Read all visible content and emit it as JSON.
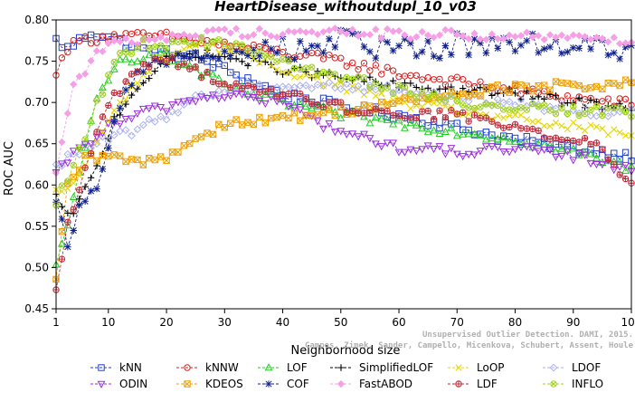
{
  "chart_data": {
    "type": "line",
    "title": "HeartDisease_withoutdupl_10_v03",
    "xlabel": "Neighborhood size",
    "ylabel": "ROC AUC",
    "xlim": [
      1,
      100
    ],
    "ylim": [
      0.45,
      0.8
    ],
    "x_ticks": [
      "1",
      "10",
      "20",
      "30",
      "40",
      "50",
      "60",
      "70",
      "80",
      "90",
      "100"
    ],
    "y_ticks": [
      "0.45",
      "0.50",
      "0.55",
      "0.60",
      "0.65",
      "0.70",
      "0.75",
      "0.80"
    ],
    "grid": false,
    "legend_position": "bottom",
    "credit": [
      "Campos, Zimek, Sander, Campello, Micenkova, Schubert, Assent, Houle",
      "Unsupervised Outlier Detection. DAMI, 2015."
    ],
    "series": [
      {
        "name": "kNN",
        "color": "#1f3fcf",
        "marker": "square",
        "anchors": [
          [
            1,
            0.775
          ],
          [
            3,
            0.765
          ],
          [
            7,
            0.785
          ],
          [
            10,
            0.78
          ],
          [
            15,
            0.765
          ],
          [
            20,
            0.76
          ],
          [
            25,
            0.755
          ],
          [
            30,
            0.74
          ],
          [
            35,
            0.725
          ],
          [
            40,
            0.71
          ],
          [
            50,
            0.695
          ],
          [
            60,
            0.685
          ],
          [
            70,
            0.67
          ],
          [
            80,
            0.655
          ],
          [
            90,
            0.645
          ],
          [
            100,
            0.635
          ]
        ]
      },
      {
        "name": "kNNW",
        "color": "#d62020",
        "marker": "circle",
        "anchors": [
          [
            1,
            0.73
          ],
          [
            2,
            0.76
          ],
          [
            5,
            0.775
          ],
          [
            10,
            0.78
          ],
          [
            20,
            0.78
          ],
          [
            30,
            0.77
          ],
          [
            40,
            0.76
          ],
          [
            50,
            0.75
          ],
          [
            60,
            0.735
          ],
          [
            70,
            0.725
          ],
          [
            80,
            0.715
          ],
          [
            90,
            0.705
          ],
          [
            100,
            0.698
          ]
        ]
      },
      {
        "name": "LOF",
        "color": "#22cc22",
        "marker": "triangle-up",
        "anchors": [
          [
            1,
            0.5
          ],
          [
            3,
            0.55
          ],
          [
            5,
            0.62
          ],
          [
            8,
            0.7
          ],
          [
            12,
            0.75
          ],
          [
            18,
            0.76
          ],
          [
            25,
            0.74
          ],
          [
            30,
            0.72
          ],
          [
            40,
            0.7
          ],
          [
            50,
            0.685
          ],
          [
            60,
            0.675
          ],
          [
            70,
            0.665
          ],
          [
            80,
            0.655
          ],
          [
            90,
            0.64
          ],
          [
            100,
            0.62
          ]
        ]
      },
      {
        "name": "SimplifiedLOF",
        "color": "#000000",
        "marker": "plus",
        "anchors": [
          [
            1,
            0.585
          ],
          [
            3,
            0.56
          ],
          [
            5,
            0.58
          ],
          [
            8,
            0.62
          ],
          [
            11,
            0.68
          ],
          [
            15,
            0.72
          ],
          [
            20,
            0.75
          ],
          [
            25,
            0.76
          ],
          [
            30,
            0.755
          ],
          [
            40,
            0.74
          ],
          [
            50,
            0.73
          ],
          [
            60,
            0.72
          ],
          [
            70,
            0.715
          ],
          [
            80,
            0.71
          ],
          [
            90,
            0.7
          ],
          [
            100,
            0.695
          ]
        ]
      },
      {
        "name": "LoOP",
        "color": "#e6d800",
        "marker": "x",
        "anchors": [
          [
            1,
            0.59
          ],
          [
            4,
            0.6
          ],
          [
            8,
            0.65
          ],
          [
            12,
            0.7
          ],
          [
            18,
            0.75
          ],
          [
            25,
            0.77
          ],
          [
            30,
            0.765
          ],
          [
            40,
            0.74
          ],
          [
            50,
            0.72
          ],
          [
            60,
            0.7
          ],
          [
            70,
            0.69
          ],
          [
            80,
            0.68
          ],
          [
            90,
            0.67
          ],
          [
            100,
            0.66
          ]
        ]
      },
      {
        "name": "LDOF",
        "color": "#aab0ee",
        "marker": "diamond",
        "anchors": [
          [
            1,
            0.62
          ],
          [
            4,
            0.64
          ],
          [
            8,
            0.65
          ],
          [
            12,
            0.66
          ],
          [
            16,
            0.67
          ],
          [
            20,
            0.685
          ],
          [
            25,
            0.705
          ],
          [
            30,
            0.715
          ],
          [
            40,
            0.72
          ],
          [
            50,
            0.72
          ],
          [
            60,
            0.715
          ],
          [
            70,
            0.705
          ],
          [
            80,
            0.7
          ],
          [
            90,
            0.69
          ],
          [
            100,
            0.688
          ]
        ]
      },
      {
        "name": "ODIN",
        "color": "#9a2be2",
        "marker": "triangle-down",
        "anchors": [
          [
            1,
            0.61
          ],
          [
            3,
            0.63
          ],
          [
            6,
            0.65
          ],
          [
            10,
            0.67
          ],
          [
            15,
            0.685
          ],
          [
            20,
            0.695
          ],
          [
            25,
            0.705
          ],
          [
            30,
            0.71
          ],
          [
            40,
            0.7
          ],
          [
            45,
            0.68
          ],
          [
            50,
            0.665
          ],
          [
            60,
            0.645
          ],
          [
            70,
            0.64
          ],
          [
            80,
            0.643
          ],
          [
            90,
            0.635
          ],
          [
            100,
            0.62
          ]
        ]
      },
      {
        "name": "KDEOS",
        "color": "#f0a000",
        "marker": "square-x",
        "anchors": [
          [
            1,
            0.48
          ],
          [
            3,
            0.6
          ],
          [
            6,
            0.63
          ],
          [
            10,
            0.635
          ],
          [
            15,
            0.627
          ],
          [
            20,
            0.635
          ],
          [
            25,
            0.655
          ],
          [
            30,
            0.675
          ],
          [
            40,
            0.68
          ],
          [
            50,
            0.69
          ],
          [
            60,
            0.7
          ],
          [
            70,
            0.71
          ],
          [
            80,
            0.718
          ],
          [
            90,
            0.72
          ],
          [
            100,
            0.723
          ]
        ]
      },
      {
        "name": "COF",
        "color": "#10208a",
        "marker": "star",
        "anchors": [
          [
            1,
            0.585
          ],
          [
            3,
            0.53
          ],
          [
            5,
            0.57
          ],
          [
            8,
            0.6
          ],
          [
            10,
            0.65
          ],
          [
            13,
            0.72
          ],
          [
            17,
            0.745
          ],
          [
            22,
            0.755
          ],
          [
            28,
            0.755
          ],
          [
            34,
            0.76
          ],
          [
            40,
            0.765
          ],
          [
            45,
            0.77
          ],
          [
            50,
            0.775
          ],
          [
            55,
            0.765
          ],
          [
            60,
            0.77
          ],
          [
            65,
            0.765
          ],
          [
            70,
            0.77
          ],
          [
            80,
            0.775
          ],
          [
            90,
            0.77
          ],
          [
            100,
            0.765
          ]
        ]
      },
      {
        "name": "FastABOD",
        "color": "#f5a0e6",
        "marker": "diamond-filled",
        "anchors": [
          [
            1,
            0.62
          ],
          [
            4,
            0.72
          ],
          [
            7,
            0.75
          ],
          [
            10,
            0.77
          ],
          [
            15,
            0.775
          ],
          [
            20,
            0.78
          ],
          [
            30,
            0.785
          ],
          [
            40,
            0.785
          ],
          [
            50,
            0.785
          ],
          [
            60,
            0.783
          ],
          [
            70,
            0.782
          ],
          [
            80,
            0.78
          ],
          [
            90,
            0.778
          ],
          [
            100,
            0.775
          ]
        ]
      },
      {
        "name": "LDF",
        "color": "#c02838",
        "marker": "circle-plus",
        "anchors": [
          [
            1,
            0.478
          ],
          [
            3,
            0.55
          ],
          [
            6,
            0.62
          ],
          [
            10,
            0.7
          ],
          [
            15,
            0.74
          ],
          [
            20,
            0.755
          ],
          [
            25,
            0.74
          ],
          [
            30,
            0.72
          ],
          [
            40,
            0.71
          ],
          [
            50,
            0.695
          ],
          [
            60,
            0.685
          ],
          [
            70,
            0.685
          ],
          [
            80,
            0.67
          ],
          [
            90,
            0.655
          ],
          [
            95,
            0.645
          ],
          [
            100,
            0.6
          ]
        ]
      },
      {
        "name": "INFLO",
        "color": "#a0d020",
        "marker": "circle-x",
        "anchors": [
          [
            1,
            0.58
          ],
          [
            4,
            0.62
          ],
          [
            8,
            0.7
          ],
          [
            12,
            0.76
          ],
          [
            16,
            0.77
          ],
          [
            20,
            0.77
          ],
          [
            25,
            0.775
          ],
          [
            30,
            0.77
          ],
          [
            40,
            0.75
          ],
          [
            50,
            0.73
          ],
          [
            60,
            0.715
          ],
          [
            70,
            0.7
          ],
          [
            80,
            0.695
          ],
          [
            90,
            0.69
          ],
          [
            100,
            0.688
          ]
        ]
      }
    ]
  }
}
